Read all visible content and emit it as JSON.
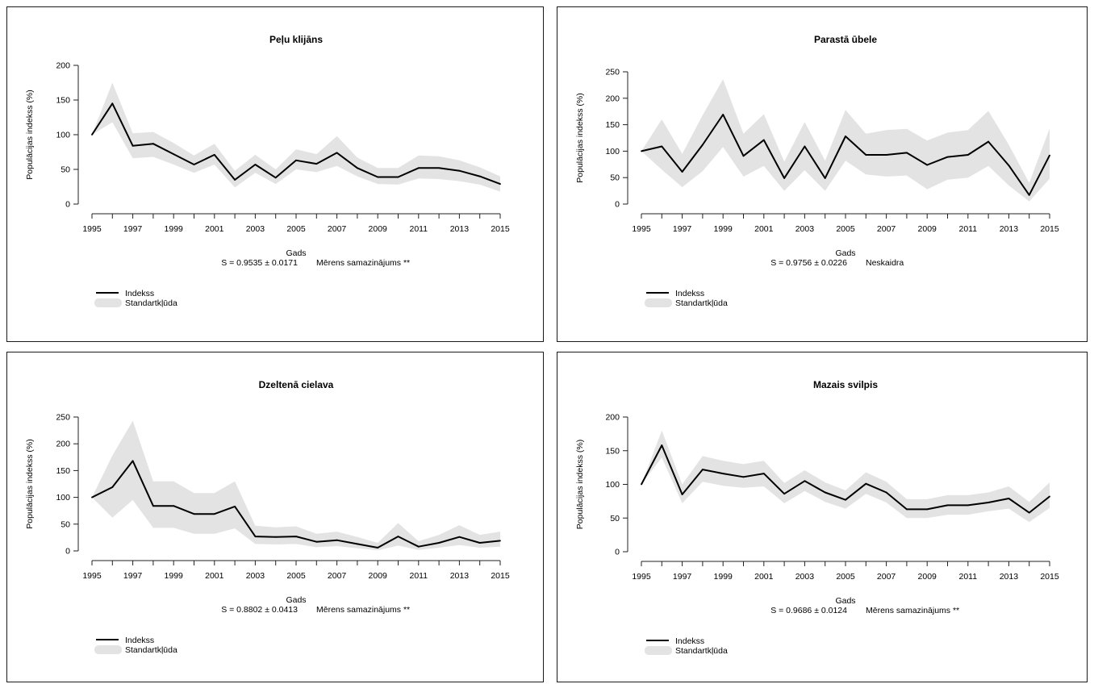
{
  "colors": {
    "line": "#000000",
    "band": "#e3e3e3",
    "axis": "#222222",
    "border": "#1a1a1a"
  },
  "chart_data": [
    {
      "type": "line",
      "title": "Peļu klijāns",
      "xlabel": "Gads",
      "ylabel": "Populācijas indekss (%)",
      "x": [
        1995,
        1996,
        1997,
        1998,
        1999,
        2000,
        2001,
        2002,
        2003,
        2004,
        2005,
        2006,
        2007,
        2008,
        2009,
        2010,
        2011,
        2012,
        2013,
        2014,
        2015
      ],
      "x_ticks": [
        "1995",
        "1997",
        "1999",
        "2001",
        "2003",
        "2005",
        "2007",
        "2009",
        "2011",
        "2013",
        "2015"
      ],
      "y_ticks": [
        "0",
        "50",
        "100",
        "150",
        "200"
      ],
      "ylim": [
        0,
        200
      ],
      "series": [
        {
          "name": "Indekss",
          "values": [
            100,
            145,
            84,
            87,
            72,
            57,
            71,
            35,
            57,
            38,
            63,
            58,
            74,
            52,
            39,
            39,
            52,
            52,
            48,
            40,
            29
          ]
        }
      ],
      "band": {
        "name": "Standartkļūda",
        "lower": [
          100,
          118,
          66,
          68,
          57,
          45,
          57,
          24,
          45,
          29,
          50,
          46,
          55,
          40,
          29,
          28,
          37,
          36,
          33,
          28,
          18
        ],
        "upper": [
          100,
          175,
          102,
          104,
          88,
          70,
          87,
          48,
          71,
          50,
          79,
          72,
          98,
          67,
          52,
          52,
          70,
          69,
          63,
          53,
          40
        ]
      },
      "stat_text": "S = 0.9535 ± 0.0171",
      "trend_text": "Mērens samazinājums **",
      "legend": [
        "Indekss",
        "Standartkļūda"
      ],
      "legend_position": "bottom-left"
    },
    {
      "type": "line",
      "title": "Parastā ūbele",
      "xlabel": "Gads",
      "ylabel": "Populācijas indekss (%)",
      "x": [
        1995,
        1996,
        1997,
        1998,
        1999,
        2000,
        2001,
        2002,
        2003,
        2004,
        2005,
        2006,
        2007,
        2008,
        2009,
        2010,
        2011,
        2012,
        2013,
        2014,
        2015
      ],
      "x_ticks": [
        "1995",
        "1997",
        "1999",
        "2001",
        "2003",
        "2005",
        "2007",
        "2009",
        "2011",
        "2013",
        "2015"
      ],
      "y_ticks": [
        "0",
        "50",
        "100",
        "150",
        "200",
        "250"
      ],
      "ylim": [
        0,
        250
      ],
      "series": [
        {
          "name": "Indekss",
          "values": [
            100,
            109,
            61,
            112,
            169,
            91,
            121,
            49,
            109,
            49,
            128,
            93,
            93,
            97,
            74,
            89,
            93,
            118,
            73,
            17,
            92
          ]
        }
      ],
      "band": {
        "name": "Standartkļūda",
        "lower": [
          100,
          65,
          32,
          62,
          108,
          52,
          72,
          25,
          64,
          25,
          82,
          56,
          52,
          54,
          28,
          46,
          50,
          72,
          35,
          5,
          48
        ],
        "upper": [
          100,
          160,
          95,
          168,
          236,
          133,
          170,
          80,
          155,
          82,
          178,
          133,
          140,
          142,
          120,
          135,
          140,
          176,
          112,
          40,
          143
        ]
      },
      "stat_text": "S = 0.9756 ± 0.0226",
      "trend_text": "Neskaidra",
      "legend": [
        "Indekss",
        "Standartkļūda"
      ],
      "legend_position": "bottom-left"
    },
    {
      "type": "line",
      "title": "Dzeltenā cielava",
      "xlabel": "Gads",
      "ylabel": "Populācijas indekss (%)",
      "x": [
        1995,
        1996,
        1997,
        1998,
        1999,
        2000,
        2001,
        2002,
        2003,
        2004,
        2005,
        2006,
        2007,
        2008,
        2009,
        2010,
        2011,
        2012,
        2013,
        2014,
        2015
      ],
      "x_ticks": [
        "1995",
        "1997",
        "1999",
        "2001",
        "2003",
        "2005",
        "2007",
        "2009",
        "2011",
        "2013",
        "2015"
      ],
      "y_ticks": [
        "0",
        "50",
        "100",
        "150",
        "200",
        "250"
      ],
      "ylim": [
        0,
        250
      ],
      "series": [
        {
          "name": "Indekss",
          "values": [
            100,
            119,
            168,
            84,
            84,
            69,
            69,
            83,
            27,
            26,
            27,
            17,
            20,
            13,
            6,
            27,
            8,
            15,
            26,
            15,
            19
          ]
        }
      ],
      "band": {
        "name": "Standartkļūda",
        "lower": [
          100,
          62,
          95,
          43,
          43,
          32,
          32,
          42,
          13,
          12,
          13,
          7,
          9,
          5,
          1,
          10,
          2,
          6,
          11,
          6,
          8
        ],
        "upper": [
          100,
          178,
          243,
          130,
          130,
          108,
          108,
          130,
          47,
          44,
          46,
          32,
          36,
          26,
          15,
          52,
          18,
          30,
          48,
          30,
          36
        ]
      },
      "stat_text": "S = 0.8802 ± 0.0413",
      "trend_text": "Mērens samazinājums **",
      "legend": [
        "Indekss",
        "Standartkļūda"
      ],
      "legend_position": "bottom-left"
    },
    {
      "type": "line",
      "title": "Mazais svilpis",
      "xlabel": "Gads",
      "ylabel": "Populācijas indekss (%)",
      "x": [
        1995,
        1996,
        1997,
        1998,
        1999,
        2000,
        2001,
        2002,
        2003,
        2004,
        2005,
        2006,
        2007,
        2008,
        2009,
        2010,
        2011,
        2012,
        2013,
        2014,
        2015
      ],
      "x_ticks": [
        "1995",
        "1997",
        "1999",
        "2001",
        "2003",
        "2005",
        "2007",
        "2009",
        "2011",
        "2013",
        "2015"
      ],
      "y_ticks": [
        "0",
        "50",
        "100",
        "150",
        "200"
      ],
      "ylim": [
        0,
        200
      ],
      "series": [
        {
          "name": "Indekss",
          "values": [
            100,
            158,
            85,
            122,
            116,
            111,
            116,
            86,
            105,
            88,
            77,
            101,
            88,
            63,
            63,
            69,
            69,
            73,
            79,
            58,
            82
          ]
        }
      ],
      "band": {
        "name": "Standartkļūda",
        "lower": [
          100,
          140,
          72,
          104,
          98,
          95,
          97,
          72,
          90,
          74,
          64,
          86,
          73,
          50,
          50,
          55,
          55,
          60,
          64,
          44,
          65
        ],
        "upper": [
          100,
          180,
          100,
          142,
          135,
          130,
          135,
          102,
          121,
          103,
          91,
          118,
          104,
          78,
          78,
          84,
          84,
          88,
          97,
          74,
          103
        ]
      },
      "stat_text": "S = 0.9686 ± 0.0124",
      "trend_text": "Mērens samazinājums **",
      "legend": [
        "Indekss",
        "Standartkļūda"
      ],
      "legend_position": "bottom-left"
    }
  ]
}
